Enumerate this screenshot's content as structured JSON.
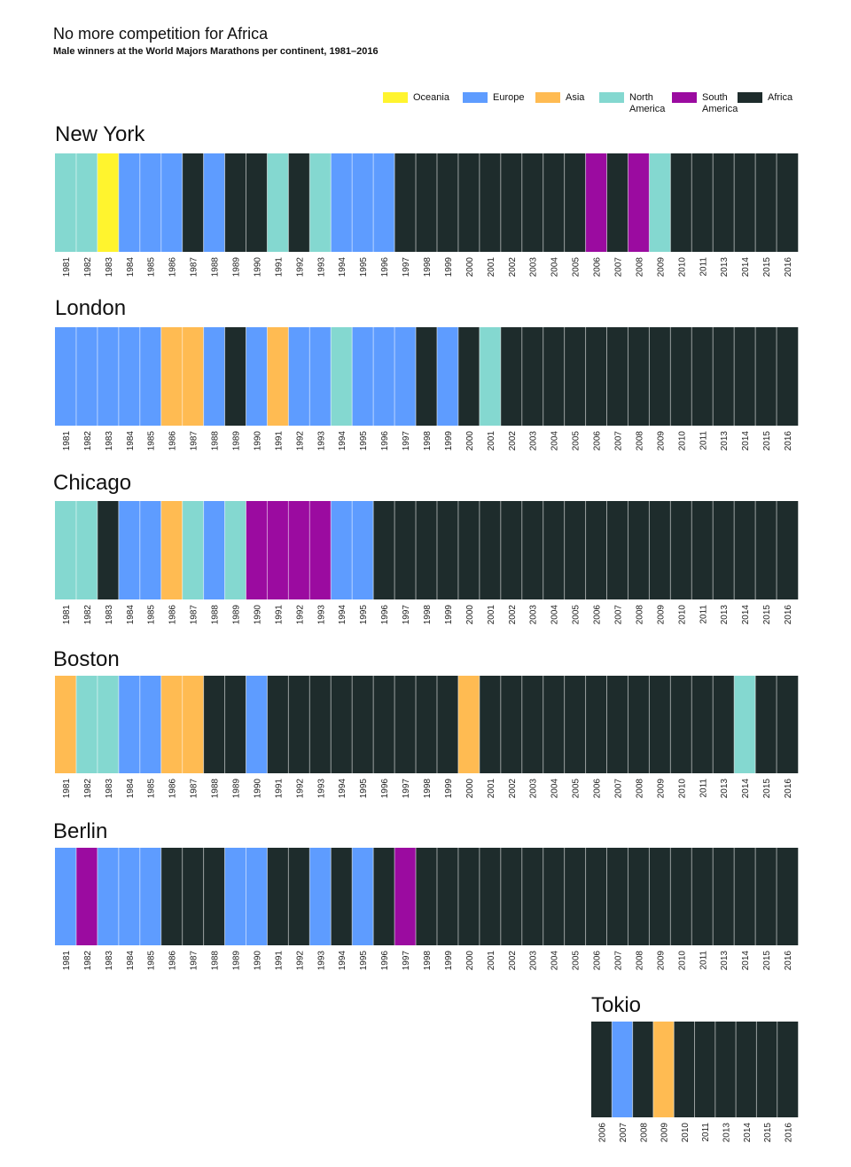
{
  "title": "No more competition for Africa",
  "subtitle": "Male winners at the World Majors Marathons per continent, 1981–2016",
  "legend": [
    {
      "name": "Oceania",
      "color": "#fff42e",
      "icon": "swatch"
    },
    {
      "name": "Europe",
      "color": "#5e9cff",
      "icon": "swatch"
    },
    {
      "name": "Asia",
      "color": "#ffbb52",
      "icon": "swatch"
    },
    {
      "name": "North America",
      "color": "#84d8d0",
      "icon": "swatch"
    },
    {
      "name": "South America",
      "color": "#9b0ba0",
      "icon": "swatch"
    },
    {
      "name": "Africa",
      "color": "#1e2c2c",
      "icon": "swatch"
    }
  ],
  "chart_data": [
    {
      "type": "heatmap",
      "title": "New York",
      "years": [
        "1981",
        "1982",
        "1983",
        "1984",
        "1985",
        "1986",
        "1987",
        "1988",
        "1989",
        "1990",
        "1991",
        "1992",
        "1993",
        "1994",
        "1995",
        "1996",
        "1997",
        "1998",
        "1999",
        "2000",
        "2001",
        "2002",
        "2003",
        "2004",
        "2005",
        "2006",
        "2007",
        "2008",
        "2009",
        "2010",
        "2011",
        "2013",
        "2014",
        "2015",
        "2016"
      ],
      "winners": [
        "North America",
        "North America",
        "Oceania",
        "Europe",
        "Europe",
        "Europe",
        "Africa",
        "Europe",
        "Africa",
        "Africa",
        "North America",
        "Africa",
        "North America",
        "Europe",
        "Europe",
        "Europe",
        "Africa",
        "Africa",
        "Africa",
        "Africa",
        "Africa",
        "Africa",
        "Africa",
        "Africa",
        "Africa",
        "South America",
        "Africa",
        "South America",
        "North America",
        "Africa",
        "Africa",
        "Africa",
        "Africa",
        "Africa",
        "Africa"
      ]
    },
    {
      "type": "heatmap",
      "title": "London",
      "years": [
        "1981",
        "1982",
        "1983",
        "1984",
        "1985",
        "1986",
        "1987",
        "1988",
        "1989",
        "1990",
        "1991",
        "1992",
        "1993",
        "1994",
        "1995",
        "1996",
        "1997",
        "1998",
        "1999",
        "2000",
        "2001",
        "2002",
        "2003",
        "2004",
        "2005",
        "2006",
        "2007",
        "2008",
        "2009",
        "2010",
        "2011",
        "2013",
        "2014",
        "2015",
        "2016"
      ],
      "winners": [
        "Europe",
        "Europe",
        "Europe",
        "Europe",
        "Europe",
        "Asia",
        "Asia",
        "Europe",
        "Africa",
        "Europe",
        "Asia",
        "Europe",
        "Europe",
        "North America",
        "Europe",
        "Europe",
        "Europe",
        "Africa",
        "Europe",
        "Africa",
        "North America",
        "Africa",
        "Africa",
        "Africa",
        "Africa",
        "Africa",
        "Africa",
        "Africa",
        "Africa",
        "Africa",
        "Africa",
        "Africa",
        "Africa",
        "Africa",
        "Africa"
      ]
    },
    {
      "type": "heatmap",
      "title": "Chicago",
      "years": [
        "1981",
        "1982",
        "1983",
        "1984",
        "1985",
        "1986",
        "1987",
        "1988",
        "1989",
        "1990",
        "1991",
        "1992",
        "1993",
        "1994",
        "1995",
        "1996",
        "1997",
        "1998",
        "1999",
        "2000",
        "2001",
        "2002",
        "2003",
        "2004",
        "2005",
        "2006",
        "2007",
        "2008",
        "2009",
        "2010",
        "2011",
        "2013",
        "2014",
        "2015",
        "2016"
      ],
      "winners": [
        "North America",
        "North America",
        "Africa",
        "Europe",
        "Europe",
        "Asia",
        "North America",
        "Europe",
        "North America",
        "South America",
        "South America",
        "South America",
        "South America",
        "Europe",
        "Europe",
        "Africa",
        "Africa",
        "Africa",
        "Africa",
        "Africa",
        "Africa",
        "Africa",
        "Africa",
        "Africa",
        "Africa",
        "Africa",
        "Africa",
        "Africa",
        "Africa",
        "Africa",
        "Africa",
        "Africa",
        "Africa",
        "Africa",
        "Africa"
      ]
    },
    {
      "type": "heatmap",
      "title": "Boston",
      "years": [
        "1981",
        "1982",
        "1983",
        "1984",
        "1985",
        "1986",
        "1987",
        "1988",
        "1989",
        "1990",
        "1991",
        "1992",
        "1993",
        "1994",
        "1995",
        "1996",
        "1997",
        "1998",
        "1999",
        "2000",
        "2001",
        "2002",
        "2003",
        "2004",
        "2005",
        "2006",
        "2007",
        "2008",
        "2009",
        "2010",
        "2011",
        "2013",
        "2014",
        "2015",
        "2016"
      ],
      "winners": [
        "Asia",
        "North America",
        "North America",
        "Europe",
        "Europe",
        "Asia",
        "Asia",
        "Africa",
        "Africa",
        "Europe",
        "Africa",
        "Africa",
        "Africa",
        "Africa",
        "Africa",
        "Africa",
        "Africa",
        "Africa",
        "Africa",
        "Asia",
        "Africa",
        "Africa",
        "Africa",
        "Africa",
        "Africa",
        "Africa",
        "Africa",
        "Africa",
        "Africa",
        "Africa",
        "Africa",
        "Africa",
        "North America",
        "Africa",
        "Africa"
      ]
    },
    {
      "type": "heatmap",
      "title": "Berlin",
      "years": [
        "1981",
        "1982",
        "1983",
        "1984",
        "1985",
        "1986",
        "1987",
        "1988",
        "1989",
        "1990",
        "1991",
        "1992",
        "1993",
        "1994",
        "1995",
        "1996",
        "1997",
        "1998",
        "1999",
        "2000",
        "2001",
        "2002",
        "2003",
        "2004",
        "2005",
        "2006",
        "2007",
        "2008",
        "2009",
        "2010",
        "2011",
        "2013",
        "2014",
        "2015",
        "2016"
      ],
      "winners": [
        "Europe",
        "South America",
        "Europe",
        "Europe",
        "Europe",
        "Africa",
        "Africa",
        "Africa",
        "Europe",
        "Europe",
        "Africa",
        "Africa",
        "Europe",
        "Africa",
        "Europe",
        "Africa",
        "South America",
        "Africa",
        "Africa",
        "Africa",
        "Africa",
        "Africa",
        "Africa",
        "Africa",
        "Africa",
        "Africa",
        "Africa",
        "Africa",
        "Africa",
        "Africa",
        "Africa",
        "Africa",
        "Africa",
        "Africa",
        "Africa"
      ]
    },
    {
      "type": "heatmap",
      "title": "Tokio",
      "years": [
        "2006",
        "2007",
        "2008",
        "2009",
        "2010",
        "2011",
        "2013",
        "2014",
        "2015",
        "2016"
      ],
      "winners": [
        "Africa",
        "Europe",
        "Africa",
        "Asia",
        "Africa",
        "Africa",
        "Africa",
        "Africa",
        "Africa",
        "Africa"
      ]
    }
  ]
}
